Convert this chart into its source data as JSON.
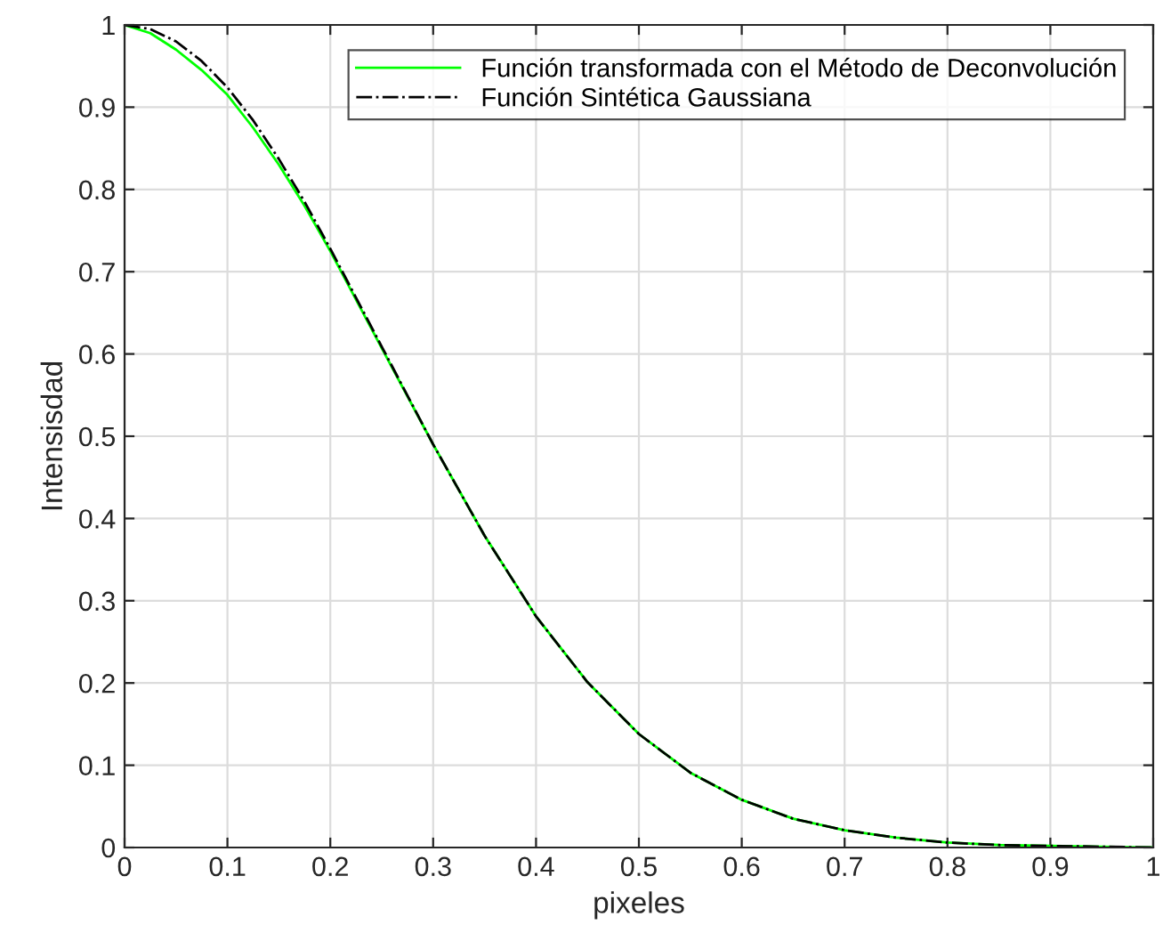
{
  "chart_data": {
    "type": "line",
    "xlabel": "pixeles",
    "ylabel": "Intensisdad",
    "x": [
      0,
      0.025,
      0.05,
      0.075,
      0.1,
      0.125,
      0.15,
      0.175,
      0.2,
      0.25,
      0.3,
      0.35,
      0.4,
      0.45,
      0.5,
      0.55,
      0.6,
      0.65,
      0.7,
      0.75,
      0.8,
      0.85,
      0.9,
      0.95,
      1
    ],
    "series": [
      {
        "name": "Función transformada con el Método de Deconvolución",
        "color": "#00ff00",
        "line_style": "solid",
        "values": [
          1,
          0.99,
          0.97,
          0.945,
          0.915,
          0.875,
          0.83,
          0.78,
          0.725,
          0.607,
          0.49,
          0.379,
          0.281,
          0.201,
          0.138,
          0.091,
          0.058,
          0.035,
          0.021,
          0.012,
          0.006,
          0.003,
          0.002,
          0.001,
          0
        ]
      },
      {
        "name": "Función Sintética Gaussiana",
        "color": "#000000",
        "line_style": "dashdot",
        "values": [
          1,
          0.995,
          0.98,
          0.956,
          0.924,
          0.884,
          0.837,
          0.785,
          0.728,
          0.609,
          0.49,
          0.379,
          0.281,
          0.201,
          0.138,
          0.091,
          0.058,
          0.035,
          0.021,
          0.012,
          0.006,
          0.003,
          0.002,
          0.001,
          0
        ]
      }
    ],
    "xlim": [
      0,
      1
    ],
    "ylim": [
      0,
      1
    ],
    "xticks": [
      0,
      0.1,
      0.2,
      0.3,
      0.4,
      0.5,
      0.6,
      0.7,
      0.8,
      0.9,
      1
    ],
    "yticks": [
      0,
      0.1,
      0.2,
      0.3,
      0.4,
      0.5,
      0.6,
      0.7,
      0.8,
      0.9,
      1
    ],
    "grid": true,
    "legend": "top right",
    "marker": "none"
  }
}
